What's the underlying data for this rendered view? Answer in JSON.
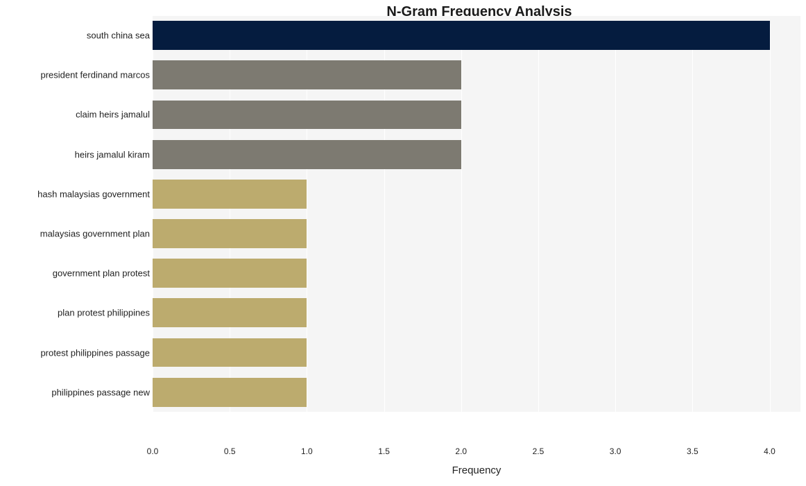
{
  "chart": {
    "type": "bar-horizontal",
    "title": "N-Gram Frequency Analysis",
    "title_fontsize": 20,
    "title_fontweight": "bold",
    "xlabel": "Frequency",
    "xlabel_fontsize": 15,
    "background_color": "#ffffff",
    "plot_band_color": "#f5f5f5",
    "gridline_color": "#ffffff",
    "label_color": "#222222",
    "xlim": [
      0,
      4.2
    ],
    "xticks": [
      0.0,
      0.5,
      1.0,
      1.5,
      2.0,
      2.5,
      3.0,
      3.5,
      4.0
    ],
    "xtick_labels": [
      "0.0",
      "0.5",
      "1.0",
      "1.5",
      "2.0",
      "2.5",
      "3.0",
      "3.5",
      "4.0"
    ],
    "bar_rel_height": 0.73,
    "y_label_fontsize": 13,
    "x_tick_fontsize": 12,
    "categories": [
      "south china sea",
      "president ferdinand marcos",
      "claim heirs jamalul",
      "heirs jamalul kiram",
      "hash malaysias government",
      "malaysias government plan",
      "government plan protest",
      "plan protest philippines",
      "protest philippines passage",
      "philippines passage new"
    ],
    "values": [
      4,
      2,
      2,
      2,
      1,
      1,
      1,
      1,
      1,
      1
    ],
    "bar_colors": [
      "#051c3f",
      "#7d7a71",
      "#7d7a71",
      "#7d7a71",
      "#bcab6e",
      "#bcab6e",
      "#bcab6e",
      "#bcab6e",
      "#bcab6e",
      "#bcab6e"
    ]
  }
}
